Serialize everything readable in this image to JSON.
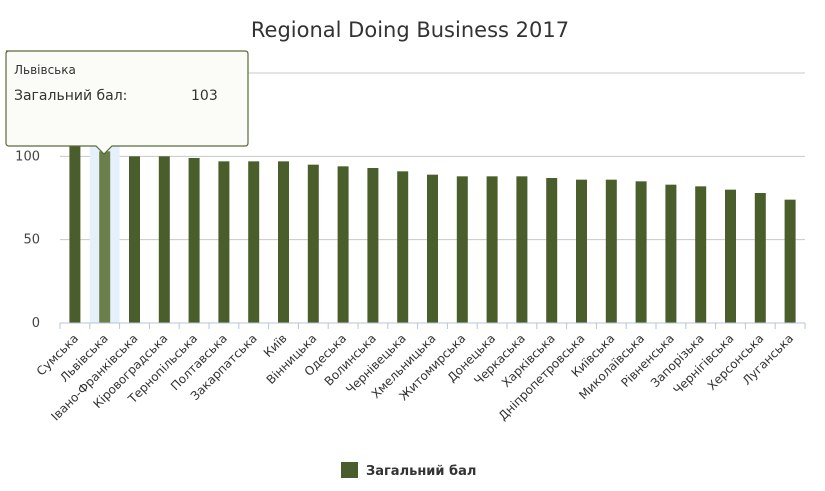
{
  "chart_data": {
    "type": "bar",
    "title": "Regional Doing Business 2017",
    "xlabel": "",
    "ylabel": "",
    "ylim": [
      0,
      150
    ],
    "yticks": [
      0,
      50,
      100
    ],
    "grid": true,
    "legend_position": "bottom-center",
    "color": "#4a5e2c",
    "highlight_color": "#6b7f4a",
    "highlight_band_color": "#e6f0fa",
    "categories": [
      "Сумська",
      "Львівська",
      "Івано-Франківська",
      "Кіровоградська",
      "Тернопільська",
      "Полтавська",
      "Закарпатська",
      "Київ",
      "Вінницька",
      "Одеська",
      "Волинська",
      "Чернівецька",
      "Хмельницька",
      "Житомирська",
      "Донецька",
      "Черкаська",
      "Харківська",
      "Дніпропетровська",
      "Київська",
      "Миколаївська",
      "Рівненська",
      "Запорізька",
      "Чернігівська",
      "Херсонська",
      "Луганська"
    ],
    "series": [
      {
        "name": "Загальний бал",
        "values": [
          107,
          103,
          100,
          100,
          99,
          97,
          97,
          97,
          95,
          94,
          93,
          91,
          89,
          88,
          88,
          88,
          87,
          86,
          86,
          85,
          83,
          82,
          80,
          78,
          74
        ]
      }
    ],
    "highlighted_index": 1,
    "tooltip": {
      "title": "Львівська",
      "label": "Загальний бал:",
      "value": "103"
    }
  }
}
